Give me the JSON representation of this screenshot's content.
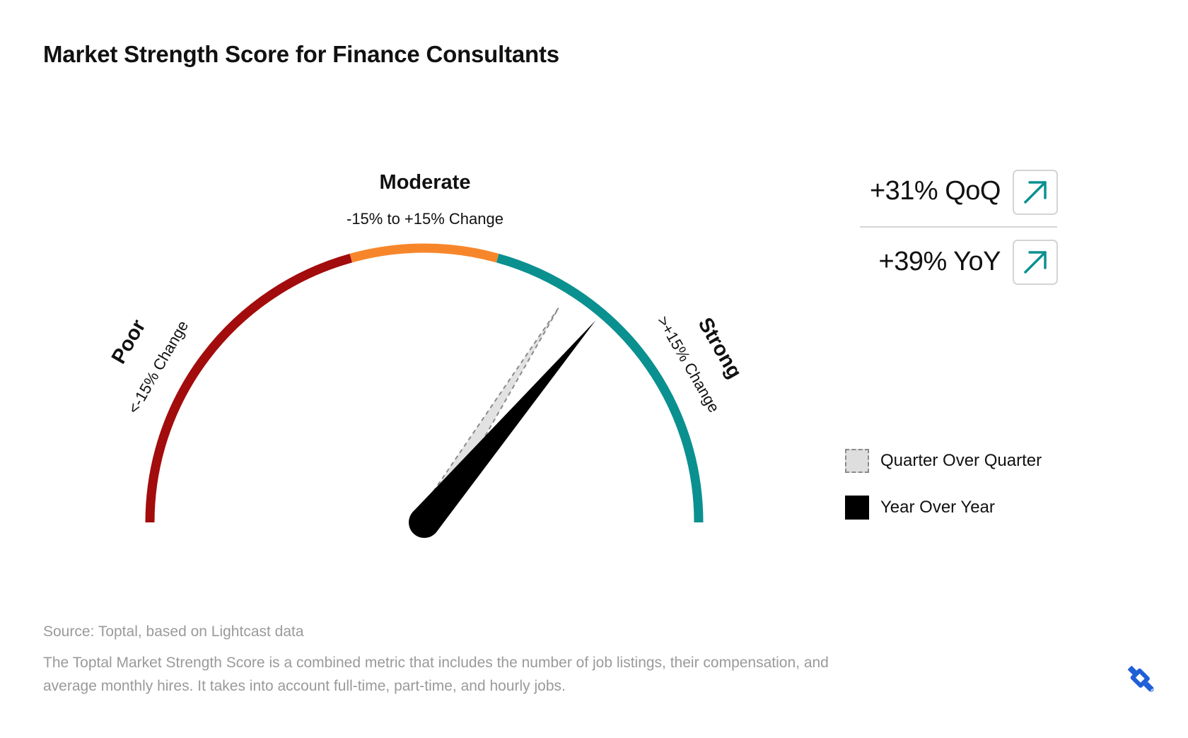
{
  "title": "Market Strength Score for Finance Consultants",
  "chart_data": {
    "type": "gauge",
    "title": "Market Strength Score for Finance Consultants",
    "segments": [
      {
        "name": "Poor",
        "range_label": "<-15% Change",
        "color": "#a30c0c"
      },
      {
        "name": "Moderate",
        "range_label": "-15% to +15% Change",
        "color": "#f7862b"
      },
      {
        "name": "Strong",
        "range_label": ">+15% Change",
        "color": "#0b9090"
      }
    ],
    "needles": [
      {
        "name": "Quarter Over Quarter",
        "value": 31,
        "unit": "%",
        "style": "dashed-light-gray"
      },
      {
        "name": "Year Over Year",
        "value": 39,
        "unit": "%",
        "style": "solid-black"
      }
    ]
  },
  "kpis": [
    {
      "label": "+31% QoQ",
      "direction": "up-right-arrow-icon"
    },
    {
      "label": "+39% YoY",
      "direction": "up-right-arrow-icon"
    }
  ],
  "legend": {
    "qoq_label": "Quarter Over Quarter",
    "yoy_label": "Year Over Year"
  },
  "footer": {
    "source": "Source: Toptal, based on Lightcast data",
    "note": "The Toptal Market Strength Score is a combined metric that includes the number of job listings, their compensation, and average monthly hires. It takes into account full-time, part-time, and hourly jobs."
  },
  "colors": {
    "poor": "#a30c0c",
    "moderate": "#f7862b",
    "strong": "#0b9090",
    "arrow": "#0b9090",
    "logo": "#1f5fd8"
  }
}
